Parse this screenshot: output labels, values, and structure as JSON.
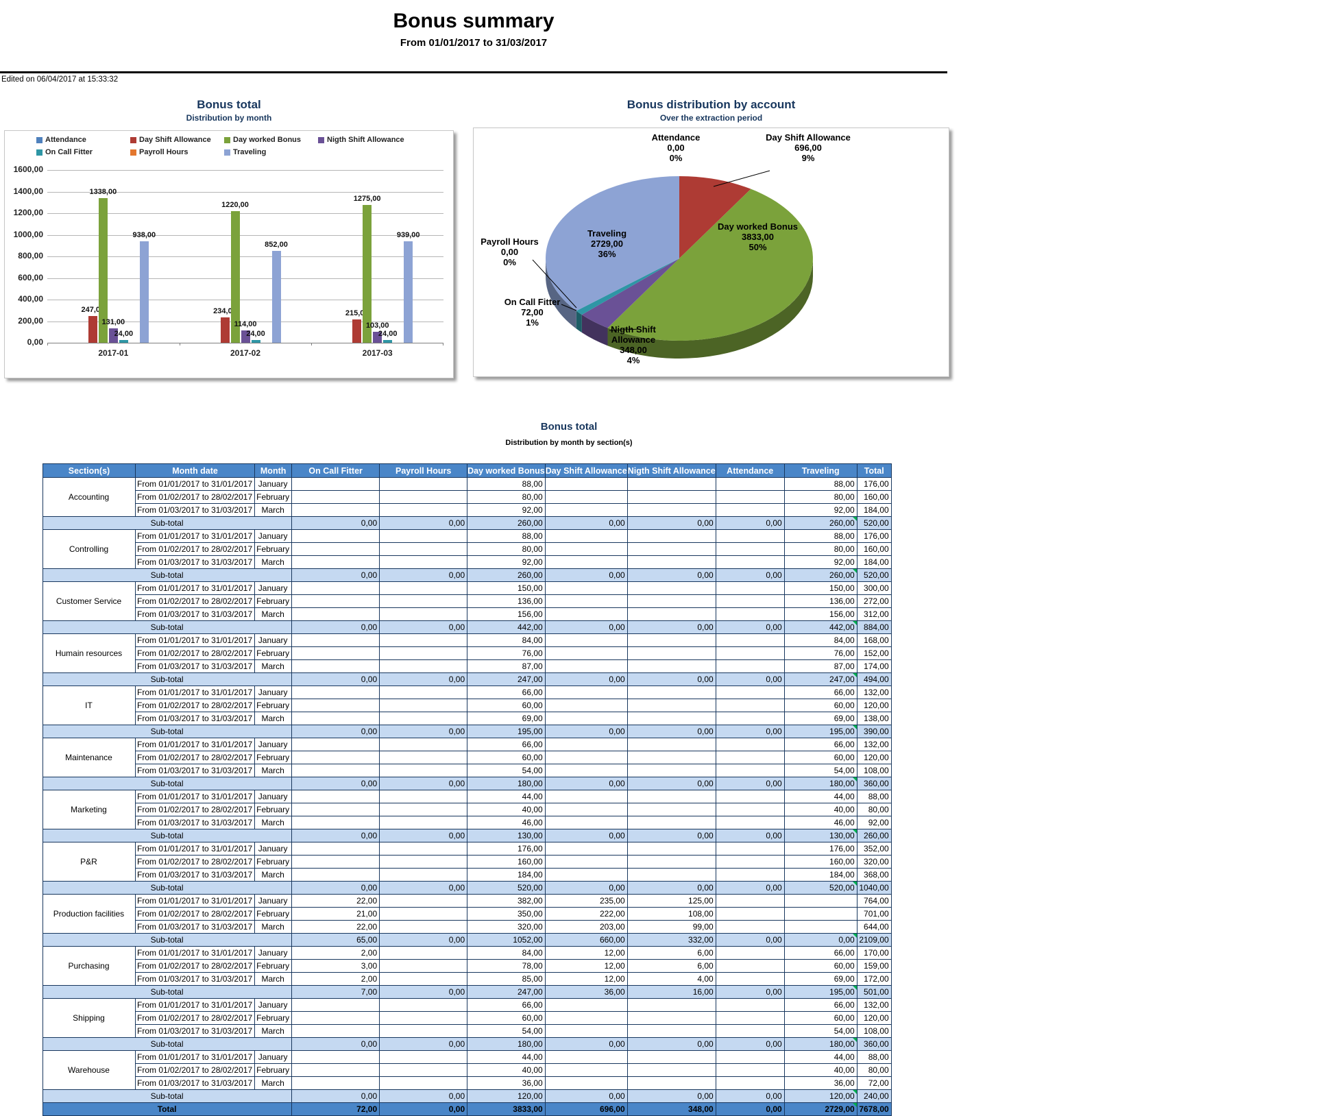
{
  "page": {
    "title": "Bonus summary",
    "subtitle": "From 01/01/2017 to 31/03/2017",
    "edited": "Edited on 06/04/2017 at 15:33:32"
  },
  "colors": {
    "header_blue": "#4a86c8",
    "subtotal_bg": "#c5d9f1",
    "border_navy": "#17365d",
    "negative": "#ff0000",
    "positive": "#00b050"
  },
  "chart_data": [
    {
      "type": "bar",
      "title": "Bonus total",
      "subtitle": "Distribution by month",
      "categories": [
        "2017-01",
        "2017-02",
        "2017-03"
      ],
      "series": [
        {
          "name": "Attendance",
          "color": "#4f81bd",
          "values": [
            0,
            0,
            0
          ]
        },
        {
          "name": "Day Shift Allowance",
          "color": "#ae3b34",
          "values": [
            247,
            234,
            215
          ]
        },
        {
          "name": "Day worked Bonus",
          "color": "#7ba23b",
          "values": [
            1338,
            1220,
            1275
          ]
        },
        {
          "name": "Nigth Shift Allowance",
          "color": "#6a5196",
          "values": [
            131,
            114,
            103
          ]
        },
        {
          "name": "On Call Fitter",
          "color": "#2e96a5",
          "values": [
            24,
            24,
            24
          ]
        },
        {
          "name": "Payroll Hours",
          "color": "#e3772e",
          "values": [
            0,
            0,
            0
          ]
        },
        {
          "name": "Traveling",
          "color": "#8da3d4",
          "values": [
            938,
            852,
            939
          ]
        }
      ],
      "ylim": [
        0,
        1600
      ],
      "ytick_step": 200,
      "grid": true,
      "legend_position": "top"
    },
    {
      "type": "pie",
      "title": "Bonus distribution by account",
      "subtitle": "Over the extraction period",
      "slices": [
        {
          "label": "Attendance",
          "value": 0,
          "pct": 0,
          "color": "#4f81bd"
        },
        {
          "label": "Day Shift Allowance",
          "value": 696,
          "pct": 9,
          "color": "#ae3b34"
        },
        {
          "label": "Day worked Bonus",
          "value": 3833,
          "pct": 50,
          "color": "#7ba23b"
        },
        {
          "label": "Nigth Shift Allowance",
          "value": 348,
          "pct": 4,
          "color": "#6a5196"
        },
        {
          "label": "On Call Fitter",
          "value": 72,
          "pct": 1,
          "color": "#2e96a5"
        },
        {
          "label": "Payroll Hours",
          "value": 0,
          "pct": 0,
          "color": "#e3772e"
        },
        {
          "label": "Traveling",
          "value": 2729,
          "pct": 36,
          "color": "#8da3d4"
        }
      ]
    }
  ],
  "table": {
    "title": "Bonus total",
    "subtitle": "Distribution by month by section(s)",
    "columns": [
      "Section(s)",
      "Month date",
      "Month",
      "On Call Fitter",
      "Payroll Hours",
      "Day worked Bonus",
      "Day Shift Allowance",
      "Nigth Shift Allowance",
      "Attendance",
      "Traveling",
      "Total"
    ],
    "month_dates": [
      "From 01/01/2017 to 31/01/2017",
      "From 01/02/2017 to 28/02/2017",
      "From 01/03/2017 to 31/03/2017"
    ],
    "months": [
      "January",
      "February",
      "March"
    ],
    "subtotal_label": "Sub-total",
    "total_label": "Total",
    "sections": [
      {
        "name": "Accounting",
        "rows": [
          [
            "",
            "",
            "88,00",
            "",
            "",
            "",
            "88,00",
            "176,00"
          ],
          [
            "",
            "",
            "80,00",
            "",
            "",
            "",
            "80,00",
            "160,00"
          ],
          [
            "",
            "",
            "92,00",
            "",
            "",
            "",
            "92,00",
            "184,00"
          ]
        ],
        "subtotal": [
          "0,00",
          "0,00",
          "260,00",
          "0,00",
          "0,00",
          "0,00",
          "260,00",
          "520,00"
        ]
      },
      {
        "name": "Controlling",
        "rows": [
          [
            "",
            "",
            "88,00",
            "",
            "",
            "",
            "88,00",
            "176,00"
          ],
          [
            "",
            "",
            "80,00",
            "",
            "",
            "",
            "80,00",
            "160,00"
          ],
          [
            "",
            "",
            "92,00",
            "",
            "",
            "",
            "92,00",
            "184,00"
          ]
        ],
        "subtotal": [
          "0,00",
          "0,00",
          "260,00",
          "0,00",
          "0,00",
          "0,00",
          "260,00",
          "520,00"
        ]
      },
      {
        "name": "Customer Service",
        "rows": [
          [
            "",
            "",
            {
              "v": "150,00",
              "c": "r"
            },
            "",
            "",
            "",
            {
              "v": "150,00",
              "c": "r"
            },
            "300,00"
          ],
          [
            "",
            "",
            {
              "v": "136,00",
              "c": "r"
            },
            "",
            "",
            "",
            {
              "v": "136,00",
              "c": "r"
            },
            "272,00"
          ],
          [
            "",
            "",
            {
              "v": "156,00",
              "c": "r"
            },
            "",
            "",
            "",
            {
              "v": "156,00",
              "c": "r"
            },
            "312,00"
          ]
        ],
        "subtotal": [
          "0,00",
          "0,00",
          "442,00",
          "0,00",
          "0,00",
          "0,00",
          "442,00",
          "884,00"
        ]
      },
      {
        "name": "Humain resources",
        "rows": [
          [
            "",
            "",
            "84,00",
            "",
            "",
            "",
            "84,00",
            "168,00"
          ],
          [
            "",
            "",
            "76,00",
            "",
            "",
            "",
            "76,00",
            "152,00"
          ],
          [
            "",
            "",
            "87,00",
            "",
            "",
            "",
            "87,00",
            "174,00"
          ]
        ],
        "subtotal": [
          "0,00",
          "0,00",
          "247,00",
          "0,00",
          "0,00",
          "0,00",
          "247,00",
          "494,00"
        ]
      },
      {
        "name": "IT",
        "rows": [
          [
            "",
            "",
            "66,00",
            "",
            "",
            "",
            "66,00",
            "132,00"
          ],
          [
            "",
            "",
            "60,00",
            "",
            "",
            "",
            "60,00",
            "120,00"
          ],
          [
            "",
            "",
            "69,00",
            "",
            "",
            "",
            "69,00",
            "138,00"
          ]
        ],
        "subtotal": [
          "0,00",
          "0,00",
          "195,00",
          "0,00",
          "0,00",
          "0,00",
          "195,00",
          "390,00"
        ]
      },
      {
        "name": "Maintenance",
        "rows": [
          [
            "",
            "",
            "66,00",
            "",
            "",
            "",
            "66,00",
            "132,00"
          ],
          [
            "",
            "",
            "60,00",
            "",
            "",
            "",
            "60,00",
            "120,00"
          ],
          [
            "",
            "",
            "54,00",
            "",
            "",
            "",
            "54,00",
            "108,00"
          ]
        ],
        "subtotal": [
          "0,00",
          "0,00",
          "180,00",
          "0,00",
          "0,00",
          "0,00",
          "180,00",
          "360,00"
        ]
      },
      {
        "name": "Marketing",
        "rows": [
          [
            "",
            "",
            {
              "v": "44,00",
              "c": "g"
            },
            "",
            "",
            "",
            {
              "v": "44,00",
              "c": "g"
            },
            "88,00"
          ],
          [
            "",
            "",
            {
              "v": "40,00",
              "c": "g"
            },
            "",
            "",
            "",
            {
              "v": "40,00",
              "c": "g"
            },
            "80,00"
          ],
          [
            "",
            "",
            {
              "v": "46,00",
              "c": "g"
            },
            "",
            "",
            "",
            {
              "v": "46,00",
              "c": "g"
            },
            "92,00"
          ]
        ],
        "subtotal": [
          "0,00",
          "0,00",
          "130,00",
          "0,00",
          "0,00",
          "0,00",
          "130,00",
          "260,00"
        ]
      },
      {
        "name": "P&R",
        "rows": [
          [
            "",
            "",
            {
              "v": "176,00",
              "c": "r"
            },
            "",
            "",
            "",
            {
              "v": "176,00",
              "c": "r"
            },
            "352,00"
          ],
          [
            "",
            "",
            {
              "v": "160,00",
              "c": "r"
            },
            "",
            "",
            "",
            {
              "v": "160,00",
              "c": "r"
            },
            "320,00"
          ],
          [
            "",
            "",
            {
              "v": "184,00",
              "c": "r"
            },
            "",
            "",
            "",
            {
              "v": "184,00",
              "c": "r"
            },
            "368,00"
          ]
        ],
        "subtotal": [
          "0,00",
          "0,00",
          "520,00",
          "0,00",
          "0,00",
          "0,00",
          "520,00",
          "1040,00"
        ]
      },
      {
        "name": "Production facilities",
        "rows": [
          [
            {
              "v": "22,00",
              "c": "g"
            },
            "",
            {
              "v": "382,00",
              "c": "r"
            },
            {
              "v": "235,00",
              "c": "r"
            },
            {
              "v": "125,00",
              "c": "r"
            },
            "",
            "",
            "764,00"
          ],
          [
            {
              "v": "21,00",
              "c": "g"
            },
            "",
            {
              "v": "350,00",
              "c": "r"
            },
            {
              "v": "222,00",
              "c": "r"
            },
            {
              "v": "108,00",
              "c": "r"
            },
            "",
            "",
            "701,00"
          ],
          [
            {
              "v": "22,00",
              "c": "g"
            },
            "",
            {
              "v": "320,00",
              "c": "r"
            },
            {
              "v": "203,00",
              "c": "r"
            },
            "99,00",
            "",
            "",
            "644,00"
          ]
        ],
        "subtotal": [
          "65,00",
          "0,00",
          "1052,00",
          "660,00",
          "332,00",
          "0,00",
          "0,00",
          "2109,00"
        ]
      },
      {
        "name": "Purchasing",
        "rows": [
          [
            {
              "v": "2,00",
              "c": "g"
            },
            "",
            "84,00",
            {
              "v": "12,00",
              "c": "g"
            },
            {
              "v": "6,00",
              "c": "g"
            },
            "",
            "66,00",
            "170,00"
          ],
          [
            {
              "v": "3,00",
              "c": "g"
            },
            "",
            "78,00",
            {
              "v": "12,00",
              "c": "g"
            },
            {
              "v": "6,00",
              "c": "g"
            },
            "",
            "60,00",
            "159,00"
          ],
          [
            {
              "v": "2,00",
              "c": "g"
            },
            "",
            "85,00",
            {
              "v": "12,00",
              "c": "g"
            },
            {
              "v": "4,00",
              "c": "g"
            },
            "",
            "69,00",
            "172,00"
          ]
        ],
        "subtotal": [
          "7,00",
          "0,00",
          "247,00",
          "36,00",
          "16,00",
          "0,00",
          "195,00",
          "501,00"
        ]
      },
      {
        "name": "Shipping",
        "rows": [
          [
            "",
            "",
            "66,00",
            "",
            "",
            "",
            "66,00",
            "132,00"
          ],
          [
            "",
            "",
            "60,00",
            "",
            "",
            "",
            "60,00",
            "120,00"
          ],
          [
            "",
            "",
            "54,00",
            "",
            "",
            "",
            "54,00",
            "108,00"
          ]
        ],
        "subtotal": [
          "0,00",
          "0,00",
          "180,00",
          "0,00",
          "0,00",
          "0,00",
          "180,00",
          "360,00"
        ]
      },
      {
        "name": "Warehouse",
        "rows": [
          [
            "",
            "",
            {
              "v": "44,00",
              "c": "g"
            },
            "",
            "",
            "",
            {
              "v": "44,00",
              "c": "g"
            },
            "88,00"
          ],
          [
            "",
            "",
            {
              "v": "40,00",
              "c": "g"
            },
            "",
            "",
            "",
            {
              "v": "40,00",
              "c": "g"
            },
            "80,00"
          ],
          [
            "",
            "",
            {
              "v": "36,00",
              "c": "g"
            },
            "",
            "",
            "",
            {
              "v": "36,00",
              "c": "g"
            },
            "72,00"
          ]
        ],
        "subtotal": [
          "0,00",
          "0,00",
          "120,00",
          "0,00",
          "0,00",
          "0,00",
          "120,00",
          "240,00"
        ]
      }
    ],
    "total": [
      "72,00",
      "0,00",
      "3833,00",
      "696,00",
      "348,00",
      "0,00",
      "2729,00",
      "7678,00"
    ]
  }
}
